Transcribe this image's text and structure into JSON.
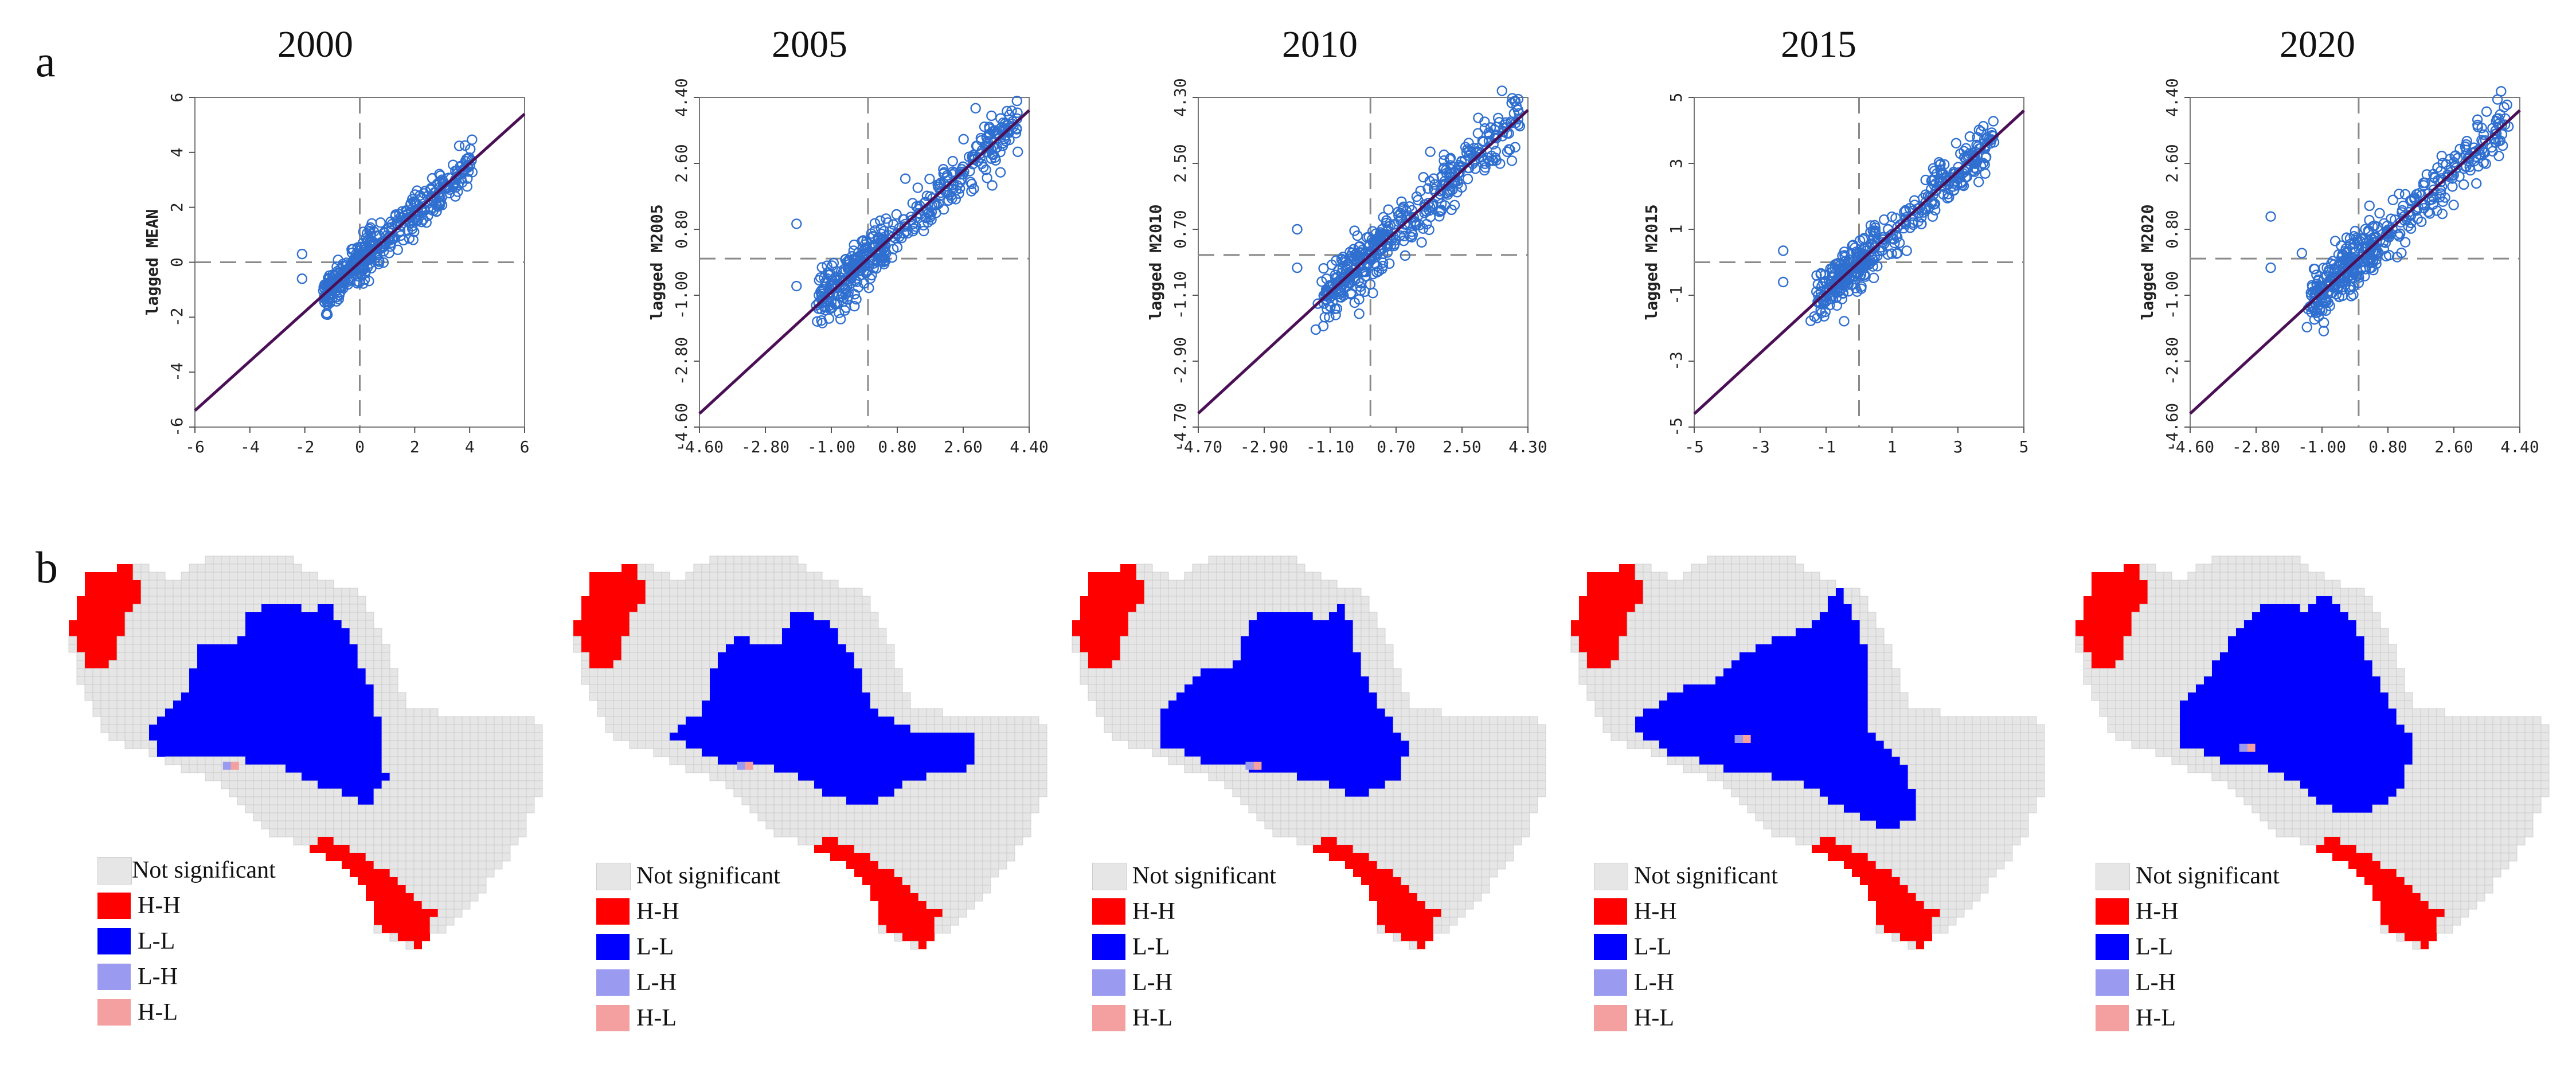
{
  "panel_labels": {
    "a": "a",
    "b": "b"
  },
  "colors": {
    "point_stroke": "#2f6fd0",
    "fit_line": "#4b0f56",
    "dashed": "#8a8a8a",
    "not_significant": "#e6e6e6",
    "hh": "#ff0000",
    "ll": "#0000ff",
    "lh": "#9a9af0",
    "hl": "#f5a0a0"
  },
  "chart_data": [
    {
      "type": "scatter",
      "title": "2000",
      "xlabel": "",
      "ylabel": "lagged MEAN",
      "xlim": [
        -6,
        6
      ],
      "ylim": [
        -6,
        6
      ],
      "xticks": [
        "-6",
        "-4",
        "-2",
        "0",
        "2",
        "4",
        "6"
      ],
      "yticks": [
        "-6",
        "-4",
        "-2",
        "0",
        "2",
        "4",
        "6"
      ],
      "slope": 0.9,
      "n_points": 420,
      "outliers": [
        [
          -2.1,
          0.3
        ],
        [
          -2.1,
          -0.6
        ]
      ]
    },
    {
      "type": "scatter",
      "title": "2005",
      "xlabel": "",
      "ylabel": "lagged M2005",
      "xlim": [
        -4.6,
        4.4
      ],
      "ylim": [
        -4.6,
        4.4
      ],
      "xticks": [
        "-4.60",
        "-2.80",
        "-1.00",
        "0.80",
        "2.60",
        "4.40"
      ],
      "yticks": [
        "-4.60",
        "-2.80",
        "-1.00",
        "0.80",
        "2.60",
        "4.40"
      ],
      "slope": 0.92,
      "n_points": 420,
      "outliers": [
        [
          -1.95,
          0.95
        ],
        [
          -1.95,
          -0.75
        ]
      ]
    },
    {
      "type": "scatter",
      "title": "2010",
      "xlabel": "",
      "ylabel": "lagged M2010",
      "xlim": [
        -4.7,
        4.3
      ],
      "ylim": [
        -4.7,
        4.3
      ],
      "xticks": [
        "-4.70",
        "-2.90",
        "-1.10",
        "0.70",
        "2.50",
        "4.30"
      ],
      "yticks": [
        "-4.70",
        "-2.90",
        "-1.10",
        "0.70",
        "2.50",
        "4.30"
      ],
      "slope": 0.92,
      "n_points": 420,
      "outliers": [
        [
          -2.0,
          0.7
        ],
        [
          -2.0,
          -0.35
        ]
      ]
    },
    {
      "type": "scatter",
      "title": "2015",
      "xlabel": "",
      "ylabel": "lagged M2015",
      "xlim": [
        -5,
        5
      ],
      "ylim": [
        -5,
        5
      ],
      "xticks": [
        "-5",
        "-3",
        "-1",
        "1",
        "3",
        "5"
      ],
      "yticks": [
        "-5",
        "-3",
        "-1",
        "1",
        "3",
        "5"
      ],
      "slope": 0.92,
      "n_points": 420,
      "outliers": [
        [
          -2.3,
          0.35
        ],
        [
          -2.3,
          -0.6
        ]
      ]
    },
    {
      "type": "scatter",
      "title": "2020",
      "xlabel": "",
      "ylabel": "lagged M2020",
      "xlim": [
        -4.6,
        4.4
      ],
      "ylim": [
        -4.6,
        4.4
      ],
      "xticks": [
        "-4.60",
        "-2.80",
        "-1.00",
        "0.80",
        "2.60",
        "4.40"
      ],
      "yticks": [
        "-4.60",
        "-2.80",
        "-1.00",
        "0.80",
        "2.60",
        "4.40"
      ],
      "slope": 0.92,
      "n_points": 420,
      "outliers": [
        [
          -2.4,
          1.15
        ],
        [
          -2.4,
          -0.25
        ],
        [
          -1.55,
          0.15
        ]
      ]
    }
  ],
  "maps": [
    {
      "legend": {
        "ns": "Not significant",
        "hh": "H-H",
        "ll": "L-L",
        "lh": "L-H",
        "hl": "H-L"
      }
    },
    {
      "legend": {
        "ns": "Not significant",
        "hh": "H-H",
        "ll": "L-L",
        "lh": "L-H",
        "hl": "H-L"
      }
    },
    {
      "legend": {
        "ns": "Not significant",
        "hh": "H-H",
        "ll": "L-L",
        "lh": "L-H",
        "hl": "H-L"
      }
    },
    {
      "legend": {
        "ns": "Not significant",
        "hh": "H-H",
        "ll": "L-L",
        "lh": "L-H",
        "hl": "H-L"
      }
    },
    {
      "legend": {
        "ns": "Not significant",
        "hh": "H-H",
        "ll": "L-L",
        "lh": "L-H",
        "hl": "H-L"
      }
    }
  ]
}
